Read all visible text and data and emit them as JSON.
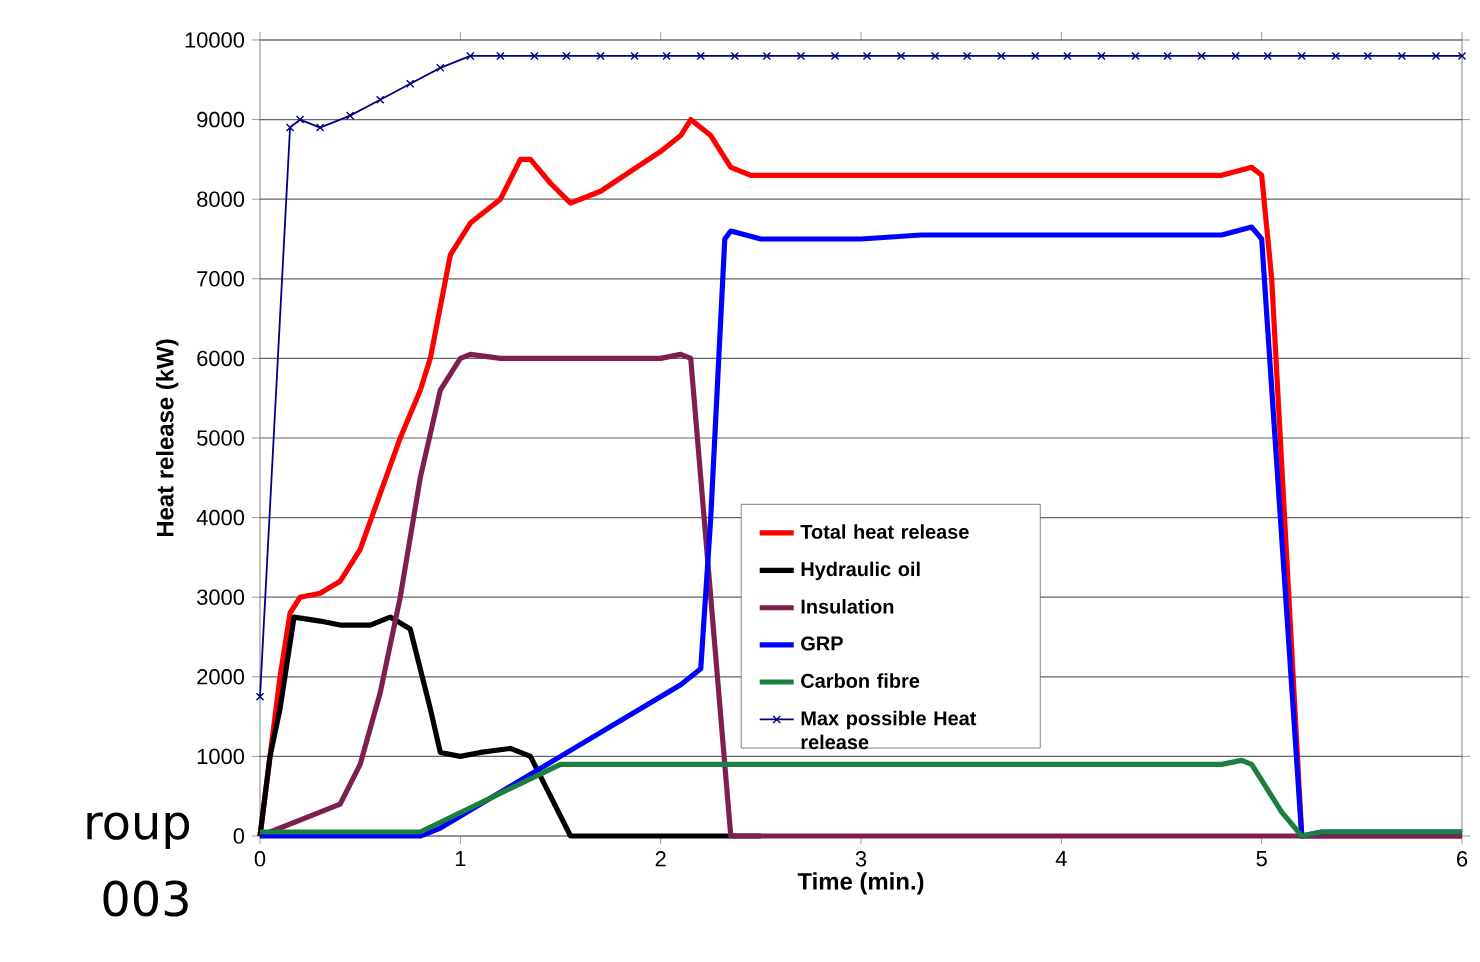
{
  "chart_data": {
    "type": "line",
    "xlabel": "Time (min.)",
    "ylabel": "Heat release (kW)",
    "xlim": [
      0,
      6
    ],
    "ylim": [
      0,
      10000
    ],
    "xticks": [
      0,
      1,
      2,
      3,
      4,
      5,
      6
    ],
    "yticks": [
      0,
      1000,
      2000,
      3000,
      4000,
      5000,
      6000,
      7000,
      8000,
      9000,
      10000
    ],
    "grid": "y",
    "legend": "center",
    "line_style": "solid",
    "annotations": [
      "roup",
      "003"
    ],
    "series": [
      {
        "name": "Total heat release",
        "color": "#ff0000",
        "x": [
          0,
          0.1,
          0.15,
          0.2,
          0.3,
          0.4,
          0.5,
          0.6,
          0.7,
          0.8,
          0.85,
          0.95,
          1.05,
          1.2,
          1.3,
          1.35,
          1.45,
          1.55,
          1.7,
          2.0,
          2.1,
          2.15,
          2.25,
          2.35,
          2.45,
          3,
          4.8,
          4.95,
          5.0,
          5.05,
          5.2,
          5.3,
          6
        ],
        "values": [
          0,
          2000,
          2800,
          3000,
          3050,
          3200,
          3600,
          4300,
          5000,
          5600,
          6000,
          7300,
          7700,
          8000,
          8500,
          8500,
          8200,
          7950,
          8100,
          8600,
          8800,
          9000,
          8800,
          8400,
          8300,
          8300,
          8300,
          8400,
          8300,
          7000,
          0,
          0,
          0
        ]
      },
      {
        "name": "Hydraulic oil",
        "color": "#000000",
        "x": [
          0,
          0.05,
          0.1,
          0.17,
          0.3,
          0.4,
          0.55,
          0.65,
          0.75,
          0.85,
          0.9,
          1.0,
          1.1,
          1.25,
          1.35,
          1.45,
          1.55,
          1.7,
          2.5
        ],
        "values": [
          0,
          1000,
          1600,
          2750,
          2700,
          2650,
          2650,
          2750,
          2600,
          1600,
          1050,
          1000,
          1050,
          1100,
          1000,
          500,
          0,
          0,
          0
        ]
      },
      {
        "name": "Insulation",
        "color": "#7f1f4f",
        "x": [
          0,
          0.3,
          0.4,
          0.5,
          0.6,
          0.7,
          0.8,
          0.9,
          1.0,
          1.05,
          1.2,
          2.0,
          2.1,
          2.15,
          2.2,
          2.3,
          2.35,
          6
        ],
        "values": [
          0,
          300,
          400,
          900,
          1800,
          3000,
          4500,
          5600,
          6000,
          6050,
          6000,
          6000,
          6050,
          6000,
          4500,
          1500,
          0,
          0
        ]
      },
      {
        "name": "GRP",
        "color": "#0000ff",
        "x": [
          0,
          0.8,
          0.9,
          1.5,
          2.1,
          2.2,
          2.25,
          2.32,
          2.35,
          2.5,
          3,
          3.3,
          4.8,
          4.95,
          5.0,
          5.2,
          5.3,
          6
        ],
        "values": [
          0,
          0,
          100,
          1000,
          1900,
          2100,
          4000,
          7500,
          7600,
          7500,
          7500,
          7550,
          7550,
          7650,
          7500,
          0,
          50,
          50
        ]
      },
      {
        "name": "Carbon fibre",
        "color": "#1a7f3f",
        "x": [
          0,
          0.8,
          1.5,
          4.8,
          4.9,
          4.95,
          5.1,
          5.2,
          5.3,
          6
        ],
        "values": [
          50,
          50,
          900,
          900,
          950,
          900,
          300,
          0,
          50,
          50
        ]
      },
      {
        "name": "Max possible Heat release",
        "color": "#000080",
        "marker": "cross",
        "x": [
          0,
          0.15,
          0.2,
          0.3,
          0.45,
          0.6,
          0.75,
          0.9,
          1.05,
          1.2,
          1.37,
          1.53,
          1.7,
          1.87,
          2.03,
          2.2,
          2.37,
          2.53,
          2.7,
          2.87,
          3.03,
          3.2,
          3.37,
          3.53,
          3.7,
          3.87,
          4.03,
          4.2,
          4.37,
          4.53,
          4.7,
          4.87,
          5.03,
          5.2,
          5.37,
          5.53,
          5.7,
          5.87,
          6
        ],
        "values": [
          1750,
          8900,
          9000,
          8900,
          9050,
          9250,
          9450,
          9650,
          9800,
          9800,
          9800,
          9800,
          9800,
          9800,
          9800,
          9800,
          9800,
          9800,
          9800,
          9800,
          9800,
          9800,
          9800,
          9800,
          9800,
          9800,
          9800,
          9800,
          9800,
          9800,
          9800,
          9800,
          9800,
          9800,
          9800,
          9800,
          9800,
          9800,
          9800
        ]
      }
    ]
  }
}
